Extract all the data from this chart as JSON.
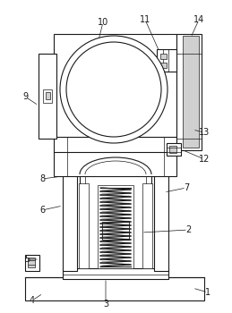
{
  "bg_color": "#ffffff",
  "line_color": "#1a1a1a",
  "gray_fill": "#d0d0d0",
  "fig_width": 2.59,
  "fig_height": 3.5,
  "dpi": 100
}
